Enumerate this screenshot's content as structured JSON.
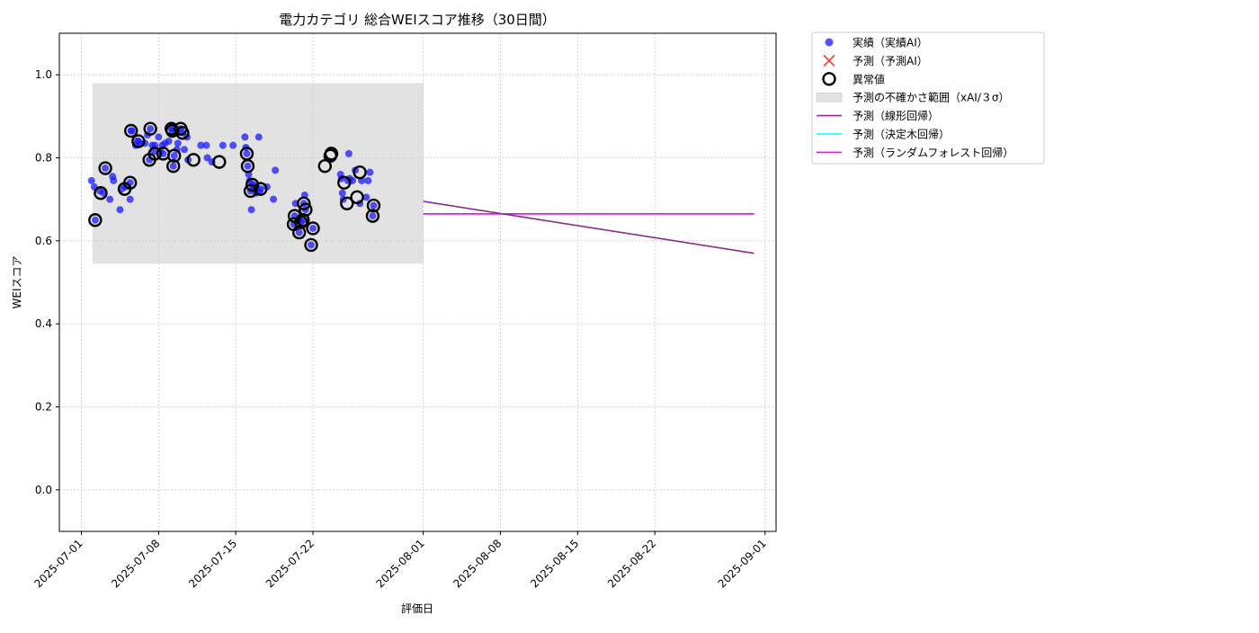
{
  "chart_data": {
    "type": "scatter",
    "title": "電力カテゴリ 総合WEIスコア推移（30日間）",
    "xlabel": "評価日",
    "ylabel": "WEIスコア",
    "ylim": [
      -0.1,
      1.1
    ],
    "xlim": [
      "2025-06-29",
      "2025-09-02"
    ],
    "x_tick_labels": [
      "2025-07-01",
      "2025-07-08",
      "2025-07-15",
      "2025-07-22",
      "2025-08-01",
      "2025-08-08",
      "2025-08-15",
      "2025-08-22",
      "2025-09-01"
    ],
    "y_tick_labels": [
      "0.0",
      "0.2",
      "0.4",
      "0.6",
      "0.8",
      "1.0"
    ],
    "y_ticks": [
      0.0,
      0.2,
      0.4,
      0.6,
      0.8,
      1.0
    ],
    "grid": true,
    "legend_position": "outside-top-right",
    "colors": {
      "actual": "#1a1aff",
      "forecast_x": "#ff3333",
      "anomaly": "#000000",
      "band": "#d3d3d3",
      "linear": "#8e2a8e",
      "tree": "#00ffff",
      "forest": "#ff00ff"
    },
    "legend": [
      {
        "key": "actual",
        "label": "実績（実績AI）"
      },
      {
        "key": "forecast",
        "label": "予測（予測AI）"
      },
      {
        "key": "anomaly",
        "label": "異常値"
      },
      {
        "key": "band",
        "label": "予測の不確かさ範囲（xAI/３σ）"
      },
      {
        "key": "linear",
        "label": "予測（線形回帰）"
      },
      {
        "key": "tree",
        "label": "予測（決定木回帰）"
      },
      {
        "key": "forest",
        "label": "予測（ランダムフォレスト回帰）"
      }
    ],
    "uncertainty_band": {
      "x_start": "2025-07-02",
      "x_end": "2025-08-01",
      "y_low": 0.545,
      "y_high": 0.98
    },
    "series": [
      {
        "name": "実績（実績AI）",
        "kind": "actual",
        "points": [
          [
            "2025-07-01T22:00",
            0.745
          ],
          [
            "2025-07-02T04:00",
            0.73
          ],
          [
            "2025-07-02T06:00",
            0.65
          ],
          [
            "2025-07-02T16:00",
            0.72
          ],
          [
            "2025-07-03T00:00",
            0.715
          ],
          [
            "2025-07-03T04:00",
            0.775
          ],
          [
            "2025-07-03T14:00",
            0.7
          ],
          [
            "2025-07-03T20:00",
            0.755
          ],
          [
            "2025-07-03T22:00",
            0.745
          ],
          [
            "2025-07-04T12:00",
            0.675
          ],
          [
            "2025-07-04T16:00",
            0.725
          ],
          [
            "2025-07-05T00:00",
            0.73
          ],
          [
            "2025-07-05T10:00",
            0.7
          ],
          [
            "2025-07-05T10:00",
            0.74
          ],
          [
            "2025-07-05T12:00",
            0.865
          ],
          [
            "2025-07-05T14:00",
            0.865
          ],
          [
            "2025-07-05T22:00",
            0.83
          ],
          [
            "2025-07-06T02:00",
            0.84
          ],
          [
            "2025-07-06T04:00",
            0.84
          ],
          [
            "2025-07-06T08:00",
            0.835
          ],
          [
            "2025-07-06T18:00",
            0.835
          ],
          [
            "2025-07-07T00:00",
            0.855
          ],
          [
            "2025-07-07T04:00",
            0.795
          ],
          [
            "2025-07-07T06:00",
            0.87
          ],
          [
            "2025-07-07T10:00",
            0.83
          ],
          [
            "2025-07-07T14:00",
            0.815
          ],
          [
            "2025-07-07T16:00",
            0.83
          ],
          [
            "2025-07-08T00:00",
            0.85
          ],
          [
            "2025-07-08T04:00",
            0.815
          ],
          [
            "2025-07-08T08:00",
            0.83
          ],
          [
            "2025-07-08T10:00",
            0.81
          ],
          [
            "2025-07-08T14:00",
            0.835
          ],
          [
            "2025-07-08T22:00",
            0.84
          ],
          [
            "2025-07-09T04:00",
            0.87
          ],
          [
            "2025-07-09T06:00",
            0.865
          ],
          [
            "2025-07-09T08:00",
            0.78
          ],
          [
            "2025-07-09T10:00",
            0.805
          ],
          [
            "2025-07-09T16:00",
            0.82
          ],
          [
            "2025-07-09T18:00",
            0.835
          ],
          [
            "2025-07-10T00:00",
            0.87
          ],
          [
            "2025-07-10T04:00",
            0.86
          ],
          [
            "2025-07-10T08:00",
            0.82
          ],
          [
            "2025-07-10T14:00",
            0.85
          ],
          [
            "2025-07-10T16:00",
            0.795
          ],
          [
            "2025-07-11T20:00",
            0.83
          ],
          [
            "2025-07-12T08:00",
            0.83
          ],
          [
            "2025-07-12T10:00",
            0.8
          ],
          [
            "2025-07-12T20:00",
            0.79
          ],
          [
            "2025-07-13T20:00",
            0.83
          ],
          [
            "2025-07-14T18:00",
            0.83
          ],
          [
            "2025-07-15T20:00",
            0.85
          ],
          [
            "2025-07-15T22:00",
            0.825
          ],
          [
            "2025-07-16T00:00",
            0.81
          ],
          [
            "2025-07-16T02:00",
            0.78
          ],
          [
            "2025-07-16T04:00",
            0.76
          ],
          [
            "2025-07-16T06:00",
            0.745
          ],
          [
            "2025-07-16T08:00",
            0.72
          ],
          [
            "2025-07-16T10:00",
            0.675
          ],
          [
            "2025-07-16T12:00",
            0.735
          ],
          [
            "2025-07-16T14:00",
            0.735
          ],
          [
            "2025-07-16T16:00",
            0.725
          ],
          [
            "2025-07-16T20:00",
            0.715
          ],
          [
            "2025-07-17T02:00",
            0.85
          ],
          [
            "2025-07-17T04:00",
            0.72
          ],
          [
            "2025-07-17T06:00",
            0.725
          ],
          [
            "2025-07-17T20:00",
            0.73
          ],
          [
            "2025-07-18T10:00",
            0.7
          ],
          [
            "2025-07-18T14:00",
            0.77
          ],
          [
            "2025-07-20T06:00",
            0.64
          ],
          [
            "2025-07-20T08:00",
            0.66
          ],
          [
            "2025-07-20T10:00",
            0.69
          ],
          [
            "2025-07-20T18:00",
            0.62
          ],
          [
            "2025-07-20T22:00",
            0.645
          ],
          [
            "2025-07-21T02:00",
            0.65
          ],
          [
            "2025-07-21T04:00",
            0.69
          ],
          [
            "2025-07-21T06:00",
            0.71
          ],
          [
            "2025-07-21T08:00",
            0.675
          ],
          [
            "2025-07-21T20:00",
            0.59
          ],
          [
            "2025-07-22T00:00",
            0.63
          ],
          [
            "2025-07-24T12:00",
            0.76
          ],
          [
            "2025-07-24T14:00",
            0.75
          ],
          [
            "2025-07-24T16:00",
            0.715
          ],
          [
            "2025-07-24T18:00",
            0.7
          ],
          [
            "2025-07-25T04:00",
            0.745
          ],
          [
            "2025-07-25T06:00",
            0.81
          ],
          [
            "2025-07-25T08:00",
            0.75
          ],
          [
            "2025-07-25T14:00",
            0.745
          ],
          [
            "2025-07-25T20:00",
            0.77
          ],
          [
            "2025-07-26T06:00",
            0.69
          ],
          [
            "2025-07-26T10:00",
            0.745
          ],
          [
            "2025-07-26T20:00",
            0.705
          ],
          [
            "2025-07-27T00:00",
            0.745
          ],
          [
            "2025-07-27T04:00",
            0.765
          ],
          [
            "2025-07-27T10:00",
            0.66
          ],
          [
            "2025-07-27T12:00",
            0.685
          ]
        ]
      },
      {
        "name": "異常値",
        "kind": "anomaly",
        "points": [
          [
            "2025-07-02T06:00",
            0.65
          ],
          [
            "2025-07-02T18:00",
            0.715
          ],
          [
            "2025-07-03T04:00",
            0.775
          ],
          [
            "2025-07-04T22:00",
            0.725
          ],
          [
            "2025-07-05T10:00",
            0.74
          ],
          [
            "2025-07-05T12:00",
            0.865
          ],
          [
            "2025-07-06T04:00",
            0.84
          ],
          [
            "2025-07-07T06:00",
            0.87
          ],
          [
            "2025-07-07T04:00",
            0.795
          ],
          [
            "2025-07-07T16:00",
            0.81
          ],
          [
            "2025-07-08T10:00",
            0.81
          ],
          [
            "2025-07-09T04:00",
            0.87
          ],
          [
            "2025-07-09T06:00",
            0.865
          ],
          [
            "2025-07-09T08:00",
            0.78
          ],
          [
            "2025-07-09T10:00",
            0.805
          ],
          [
            "2025-07-10T00:00",
            0.87
          ],
          [
            "2025-07-10T04:00",
            0.86
          ],
          [
            "2025-07-11T04:00",
            0.795
          ],
          [
            "2025-07-13T12:00",
            0.79
          ],
          [
            "2025-07-16T00:00",
            0.81
          ],
          [
            "2025-07-16T02:00",
            0.78
          ],
          [
            "2025-07-16T08:00",
            0.72
          ],
          [
            "2025-07-16T12:00",
            0.735
          ],
          [
            "2025-07-17T06:00",
            0.725
          ],
          [
            "2025-07-20T06:00",
            0.64
          ],
          [
            "2025-07-20T08:00",
            0.66
          ],
          [
            "2025-07-20T18:00",
            0.62
          ],
          [
            "2025-07-20T22:00",
            0.645
          ],
          [
            "2025-07-21T02:00",
            0.65
          ],
          [
            "2025-07-21T04:00",
            0.69
          ],
          [
            "2025-07-21T08:00",
            0.675
          ],
          [
            "2025-07-21T20:00",
            0.59
          ],
          [
            "2025-07-22T00:00",
            0.63
          ],
          [
            "2025-07-23T02:00",
            0.78
          ],
          [
            "2025-07-23T14:00",
            0.805
          ],
          [
            "2025-07-23T16:00",
            0.81
          ],
          [
            "2025-07-24T20:00",
            0.74
          ],
          [
            "2025-07-25T02:00",
            0.69
          ],
          [
            "2025-07-26T00:00",
            0.705
          ],
          [
            "2025-07-26T06:00",
            0.765
          ],
          [
            "2025-07-27T10:00",
            0.66
          ],
          [
            "2025-07-27T12:00",
            0.685
          ]
        ]
      },
      {
        "name": "予測（線形回帰）",
        "kind": "linear",
        "points": [
          [
            "2025-08-01",
            0.695
          ],
          [
            "2025-08-31",
            0.57
          ]
        ]
      },
      {
        "name": "予測（決定木回帰）",
        "kind": "tree",
        "points": [
          [
            "2025-08-01",
            0.665
          ],
          [
            "2025-08-31",
            0.665
          ]
        ]
      },
      {
        "name": "予測（ランダムフォレスト回帰）",
        "kind": "forest",
        "points": [
          [
            "2025-08-01",
            0.665
          ],
          [
            "2025-08-31",
            0.665
          ]
        ]
      }
    ]
  }
}
